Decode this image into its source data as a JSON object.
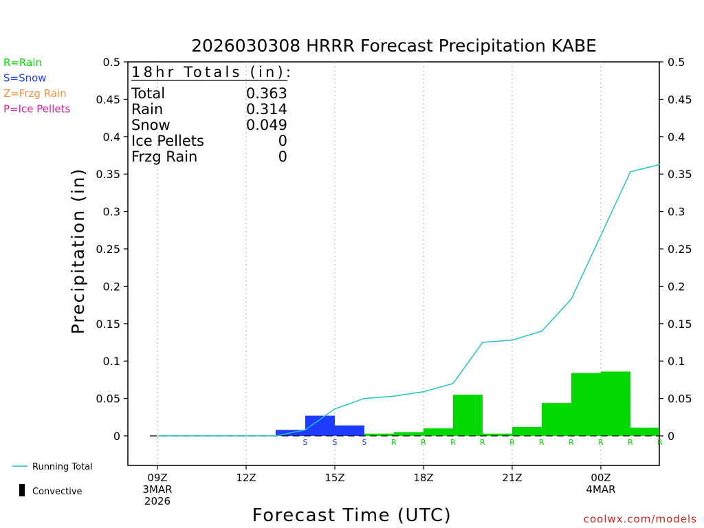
{
  "chart_data": {
    "type": "bar",
    "title": "2026030308 HRRR Forecast Precipitation KABE",
    "xlabel": "Forecast Time (UTC)",
    "ylabel": "Precipitation (in)",
    "ylim": [
      0,
      0.5
    ],
    "y_ticks": [
      "0",
      "0.05",
      "0.1",
      "0.15",
      "0.2",
      "0.25",
      "0.3",
      "0.35",
      "0.4",
      "0.45",
      "0.5"
    ],
    "x_ticks": [
      {
        "hour": 0,
        "lines": [
          "09Z",
          "3MAR",
          "2026"
        ]
      },
      {
        "hour": 3,
        "lines": [
          "12Z"
        ]
      },
      {
        "hour": 6,
        "lines": [
          "15Z"
        ]
      },
      {
        "hour": 9,
        "lines": [
          "18Z"
        ]
      },
      {
        "hour": 12,
        "lines": [
          "21Z"
        ]
      },
      {
        "hour": 15,
        "lines": [
          "00Z",
          "4MAR"
        ]
      }
    ],
    "grid": "vertical dotted",
    "bars": [
      {
        "hour": 5,
        "value": 0.008,
        "type": "S"
      },
      {
        "hour": 6,
        "value": 0.027,
        "type": "S"
      },
      {
        "hour": 7,
        "value": 0.014,
        "type": "S"
      },
      {
        "hour": 8,
        "value": 0.003,
        "type": "R"
      },
      {
        "hour": 9,
        "value": 0.005,
        "type": "R"
      },
      {
        "hour": 10,
        "value": 0.01,
        "type": "R"
      },
      {
        "hour": 11,
        "value": 0.055,
        "type": "R"
      },
      {
        "hour": 12,
        "value": 0.003,
        "type": "R"
      },
      {
        "hour": 13,
        "value": 0.012,
        "type": "R"
      },
      {
        "hour": 14,
        "value": 0.044,
        "type": "R"
      },
      {
        "hour": 15,
        "value": 0.084,
        "type": "R"
      },
      {
        "hour": 16,
        "value": 0.086,
        "type": "R"
      },
      {
        "hour": 17,
        "value": 0.011,
        "type": "R"
      }
    ],
    "running_total": {
      "name": "Running Total",
      "color": "#1fc4c4",
      "points": [
        {
          "hour": 0,
          "value": 0
        },
        {
          "hour": 3,
          "value": 0
        },
        {
          "hour": 4,
          "value": 0
        },
        {
          "hour": 5,
          "value": 0.008
        },
        {
          "hour": 6,
          "value": 0.036
        },
        {
          "hour": 7,
          "value": 0.05
        },
        {
          "hour": 8,
          "value": 0.053
        },
        {
          "hour": 9,
          "value": 0.059
        },
        {
          "hour": 10,
          "value": 0.07
        },
        {
          "hour": 11,
          "value": 0.125
        },
        {
          "hour": 12,
          "value": 0.128
        },
        {
          "hour": 13,
          "value": 0.14
        },
        {
          "hour": 14,
          "value": 0.183
        },
        {
          "hour": 15,
          "value": 0.268
        },
        {
          "hour": 16,
          "value": 0.353
        },
        {
          "hour": 17,
          "value": 0.363
        }
      ]
    },
    "type_colors": {
      "R": "#00d800",
      "S": "#1e3cff"
    }
  },
  "left_legend": [
    {
      "text": "R=Rain",
      "color": "#00d800"
    },
    {
      "text": "S=Snow",
      "color": "#1e3cff"
    },
    {
      "text": "Z=Frzg Rain",
      "color": "#f0903a"
    },
    {
      "text": "P=Ice Pellets",
      "color": "#e0209a"
    }
  ],
  "totals": {
    "header": "18hr Totals (in):",
    "rows": [
      {
        "label": "Total",
        "value": "0.363"
      },
      {
        "label": "Rain",
        "value": "0.314"
      },
      {
        "label": "Snow",
        "value": "0.049"
      },
      {
        "label": "Ice Pellets",
        "value": "0"
      },
      {
        "label": "Frzg Rain",
        "value": "0"
      }
    ]
  },
  "bottom_legend": {
    "running_total": "Running Total",
    "convective": "Convective"
  },
  "credit": "coolwx.com/models",
  "credit_color": "#d02020"
}
